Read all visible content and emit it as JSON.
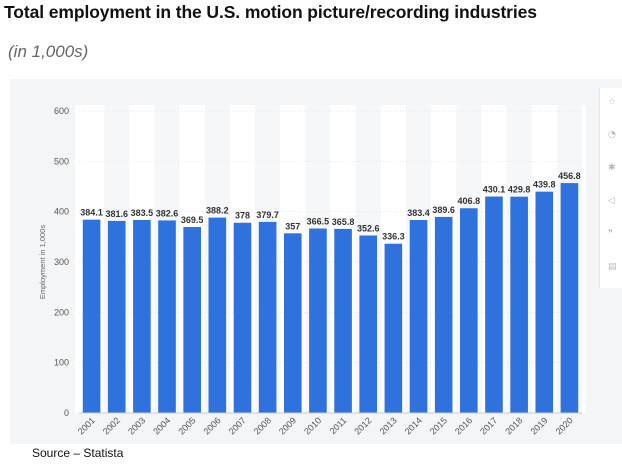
{
  "header": {
    "title": "Total employment in the U.S. motion picture/recording industries",
    "subtitle": "(in 1,000s)"
  },
  "footer": {
    "source": "Source – Statista"
  },
  "toolbar": {
    "icons": [
      "star-icon",
      "bell-icon",
      "gear-icon",
      "share-icon",
      "quote-icon",
      "print-icon"
    ]
  },
  "chart_data": {
    "type": "bar",
    "title": "Total employment in the U.S. motion picture/recording industries",
    "subtitle": "(in 1,000s)",
    "xlabel": "",
    "ylabel": "Employment in 1,000s",
    "ylim": [
      0,
      600
    ],
    "yticks": [
      0,
      100,
      200,
      300,
      400,
      500,
      600
    ],
    "grid": true,
    "legend": "none",
    "bar_color": "#2f72dd",
    "categories": [
      "2001",
      "2002",
      "2003",
      "2004",
      "2005",
      "2006",
      "2007",
      "2008",
      "2009",
      "2010",
      "2011",
      "2012",
      "2013",
      "2014",
      "2015",
      "2016",
      "2017",
      "2018",
      "2019",
      "2020"
    ],
    "values": [
      384.1,
      381.6,
      383.5,
      382.6,
      369.5,
      388.2,
      378,
      379.7,
      357,
      366.5,
      365.8,
      352.6,
      336.3,
      383.4,
      389.6,
      406.8,
      430.1,
      429.8,
      439.8,
      456.8
    ],
    "value_labels": [
      "384.1",
      "381.6",
      "383.5",
      "382.6",
      "369.5",
      "388.2",
      "378",
      "379.7",
      "357",
      "366.5",
      "365.8",
      "352.6",
      "336.3",
      "383.4",
      "389.6",
      "406.8",
      "430.1",
      "429.8",
      "439.8",
      "456.8"
    ]
  }
}
